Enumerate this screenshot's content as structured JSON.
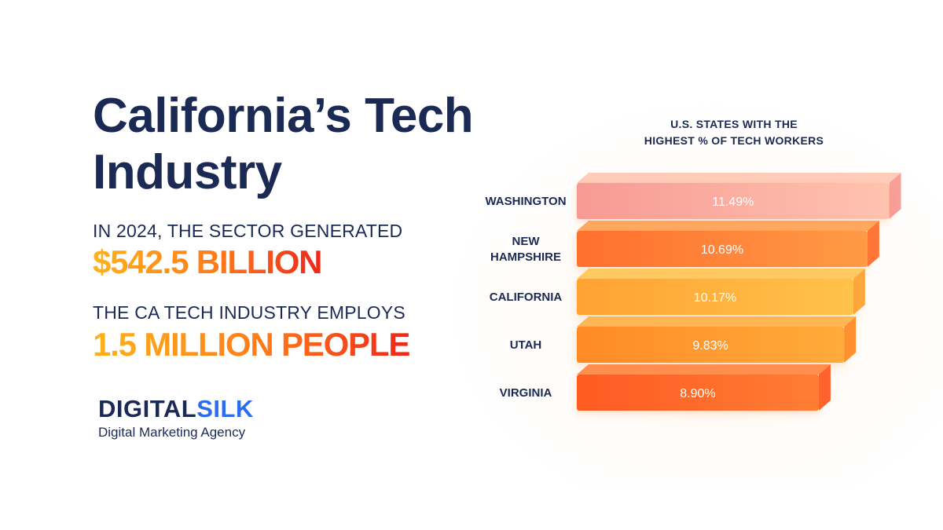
{
  "header": {
    "title": "California’s Tech Industry"
  },
  "stats": [
    {
      "lead": "IN 2024, THE SECTOR GENERATED",
      "value": "$542.5 BILLION"
    },
    {
      "lead": "THE CA TECH INDUSTRY EMPLOYS",
      "value": "1.5 MILLION PEOPLE"
    }
  ],
  "brand": {
    "name_part1": "DIGITAL",
    "name_part2": "SILK",
    "tagline": "Digital Marketing Agency"
  },
  "colors": {
    "navy": "#1b2a55",
    "brand_blue": "#2b6cf0",
    "accent_yellow": "#ffb21a",
    "accent_red": "#f0261a"
  },
  "chart_data": {
    "type": "bar",
    "orientation": "horizontal",
    "title_lines": [
      "U.S. STATES WITH THE",
      "HIGHEST % OF TECH WORKERS"
    ],
    "categories": [
      [
        "WASHINGTON"
      ],
      [
        "NEW",
        "HAMPSHIRE"
      ],
      [
        "CALIFORNIA"
      ],
      [
        "UTAH"
      ],
      [
        "VIRGINIA"
      ]
    ],
    "values": [
      11.49,
      10.69,
      10.17,
      9.83,
      8.9
    ],
    "value_labels": [
      "11.49%",
      "10.69%",
      "10.17%",
      "9.83%",
      "8.90%"
    ],
    "bar_colors": [
      [
        "#f79a94",
        "#ffc3ae"
      ],
      [
        "#ff6f2e",
        "#ff9a45"
      ],
      [
        "#ffa233",
        "#ffc24a"
      ],
      [
        "#ff8a26",
        "#ffab3a"
      ],
      [
        "#ff5a23",
        "#ff7d33"
      ]
    ],
    "grid": false,
    "legend": "none"
  }
}
